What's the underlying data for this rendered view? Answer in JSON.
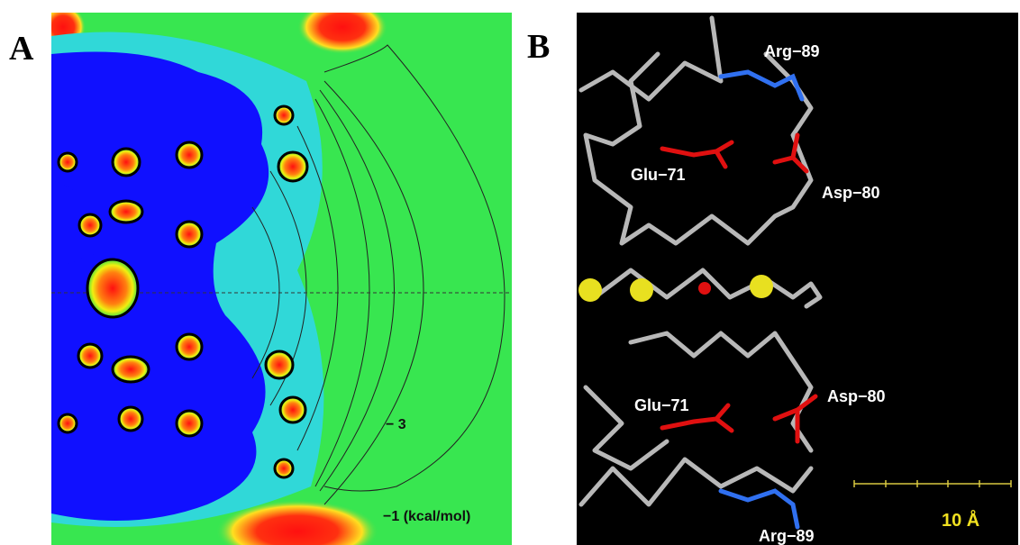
{
  "panels": [
    {
      "label": "A",
      "annotations": [
        "− 3",
        "−1 (kcal/mol)"
      ]
    },
    {
      "label": "B",
      "residue_labels": [
        "Arg−89",
        "Glu−71",
        "Asp−80",
        "Asp−80",
        "Glu−71",
        "Arg−89"
      ],
      "scale_bar": "10 Å"
    }
  ]
}
